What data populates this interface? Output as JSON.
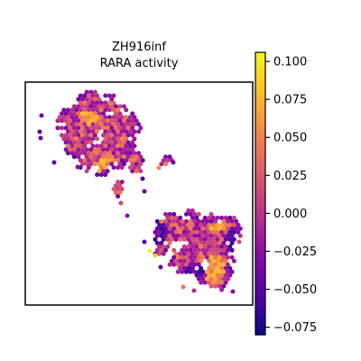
{
  "chart_data": {
    "type": "scatter",
    "title_lines": [
      "ZH916inf",
      "RARA activity"
    ],
    "colormap": "plasma",
    "colorbar": {
      "range": [
        -0.08,
        0.106
      ],
      "ticks": [
        0.1,
        0.075,
        0.05,
        0.025,
        0.0,
        -0.025,
        -0.05,
        -0.075
      ],
      "tick_labels": [
        "0.100",
        "0.075",
        "0.050",
        "0.025",
        "0.000",
        "−0.025",
        "−0.050",
        "−0.075"
      ]
    },
    "axes": {
      "xticks": [],
      "yticks": [],
      "frame": true
    },
    "colors": {
      "plasma": [
        "#0d0887",
        "#41049d",
        "#6a00a8",
        "#8f0da4",
        "#b12a90",
        "#cc4778",
        "#e16462",
        "#f2844b",
        "#fca636",
        "#fcce25",
        "#f0f921"
      ]
    }
  }
}
